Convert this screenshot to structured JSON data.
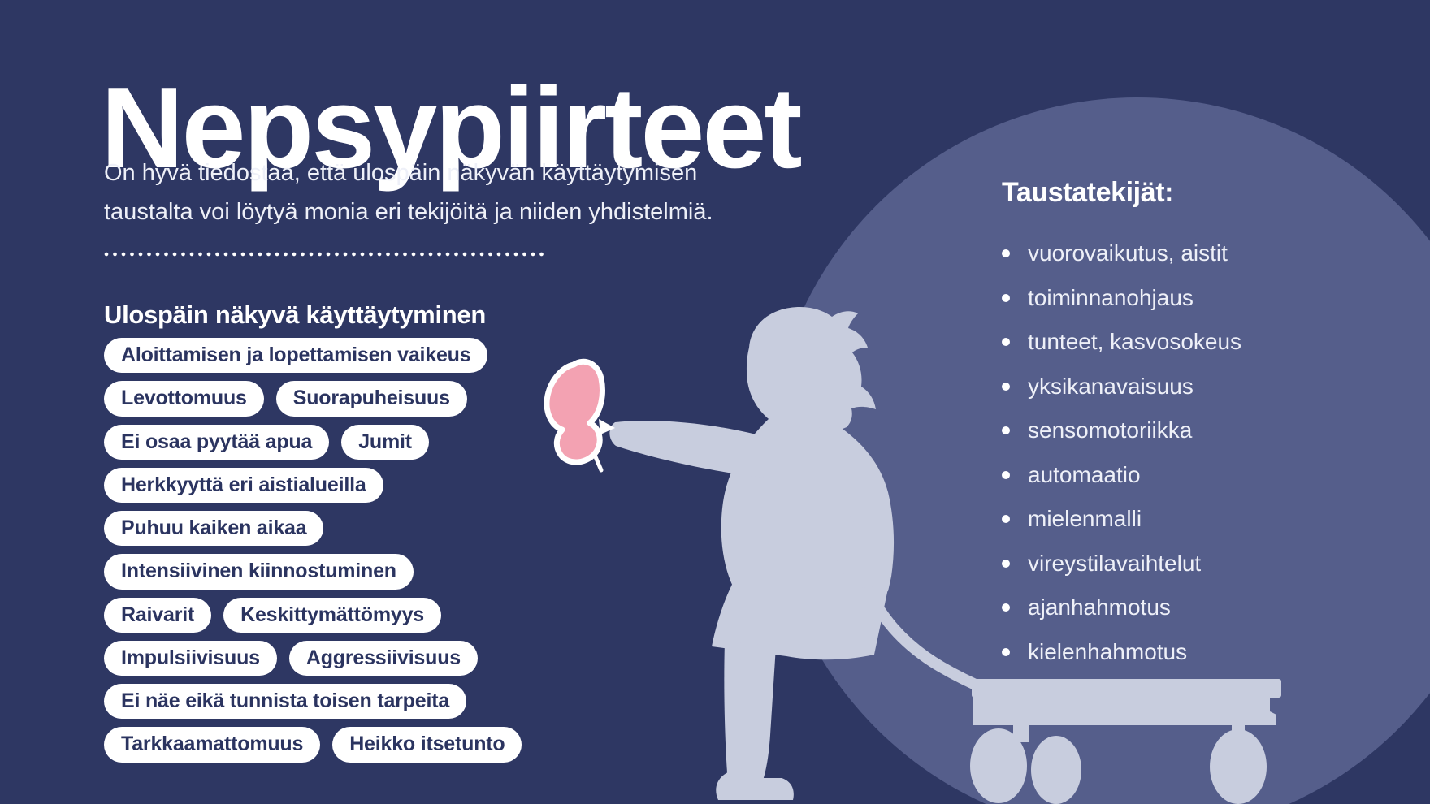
{
  "title": "Nepsypiirteet",
  "intro": {
    "line1": "On hyvä tiedostaa, että ulospäin näkyvän käyttäytymisen",
    "line2": "taustalta voi löytyä monia eri tekijöitä ja niiden yhdistelmiä."
  },
  "left_section": {
    "heading": "Ulospäin näkyvä käyttäytyminen",
    "pill_rows": [
      [
        "Aloittamisen ja lopettamisen vaikeus"
      ],
      [
        "Levottomuus",
        "Suorapuheisuus"
      ],
      [
        "Ei osaa pyytää apua",
        "Jumit"
      ],
      [
        "Herkkyyttä eri aistialueilla"
      ],
      [
        "Puhuu kaiken aikaa"
      ],
      [
        "Intensiivinen kiinnostuminen"
      ],
      [
        "Raivarit",
        "Keskittymättömyys"
      ],
      [
        "Impulsiivisuus",
        "Aggressiivisuus"
      ],
      [
        "Ei näe eikä tunnista toisen tarpeita"
      ],
      [
        "Tarkkaamattomuus",
        "Heikko itsetunto"
      ]
    ]
  },
  "right_section": {
    "heading": "Taustatekijät:",
    "items": [
      "vuorovaikutus, aistit",
      "toiminnanohjaus",
      "tunteet, kasvosokeus",
      "yksikanavaisuus",
      "sensomotoriikka",
      "automaatio",
      "mielenmalli",
      "vireystilavaihtelut",
      "ajanhahmotus",
      "kielenhahmotus"
    ]
  },
  "illustration": {
    "child": "child-silhouette-pulling-wagon",
    "butterfly": "pink-butterfly-on-hand",
    "wagon": "toy-wagon-silhouette"
  },
  "colors": {
    "background": "#2e3763",
    "circle": "#555e8b",
    "silhouette": "#c8cdde",
    "butterfly_fill": "#f3a2b2",
    "butterfly_outline": "#ffffff",
    "pill_bg": "#ffffff",
    "pill_text": "#2b3460",
    "text": "#ffffff"
  }
}
